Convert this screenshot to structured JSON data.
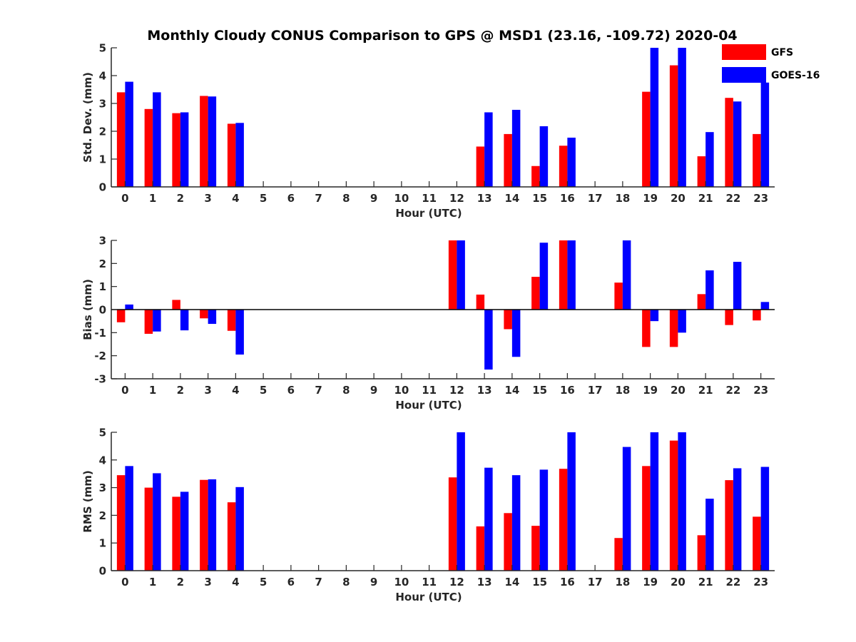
{
  "chart_data": {
    "title": "Monthly Cloudy CONUS Comparison to GPS @ MSD1 (23.16, -109.72) 2020-04",
    "legend": {
      "placement": "top-right",
      "entries": [
        {
          "name": "GFS",
          "color": "#ff0000"
        },
        {
          "name": "GOES-16",
          "color": "#0000ff"
        }
      ]
    },
    "panels": [
      {
        "type": "bar",
        "ylabel": "Std. Dev. (mm)",
        "xlabel": "Hour (UTC)",
        "ylim": [
          0,
          5
        ],
        "yticks": [
          "0",
          "1",
          "2",
          "3",
          "4",
          "5"
        ],
        "categories": [
          "0",
          "1",
          "2",
          "3",
          "4",
          "5",
          "6",
          "7",
          "8",
          "9",
          "10",
          "11",
          "12",
          "13",
          "14",
          "15",
          "16",
          "17",
          "18",
          "19",
          "20",
          "21",
          "22",
          "23"
        ],
        "series": [
          {
            "name": "GFS",
            "color": "#ff0000",
            "values": [
              3.4,
              2.8,
              2.65,
              3.27,
              2.27,
              null,
              null,
              null,
              null,
              null,
              null,
              null,
              null,
              1.45,
              1.9,
              0.75,
              1.48,
              null,
              null,
              3.42,
              4.37,
              1.1,
              3.2,
              1.9
            ]
          },
          {
            "name": "GOES-16",
            "color": "#0000ff",
            "values": [
              3.78,
              3.4,
              2.68,
              3.25,
              2.3,
              null,
              null,
              null,
              null,
              null,
              null,
              null,
              null,
              2.68,
              2.77,
              2.18,
              1.77,
              null,
              null,
              5,
              5,
              1.97,
              3.07,
              3.75
            ]
          }
        ]
      },
      {
        "type": "bar",
        "ylabel": "Bias (mm)",
        "xlabel": "Hour (UTC)",
        "ylim": [
          -3,
          3
        ],
        "yticks": [
          "-3",
          "-2",
          "-1",
          "0",
          "1",
          "2",
          "3"
        ],
        "categories": [
          "0",
          "1",
          "2",
          "3",
          "4",
          "5",
          "6",
          "7",
          "8",
          "9",
          "10",
          "11",
          "12",
          "13",
          "14",
          "15",
          "16",
          "17",
          "18",
          "19",
          "20",
          "21",
          "22",
          "23"
        ],
        "series": [
          {
            "name": "GFS",
            "color": "#ff0000",
            "values": [
              -0.55,
              -1.05,
              0.42,
              -0.38,
              -0.92,
              null,
              null,
              null,
              null,
              null,
              null,
              null,
              3,
              0.65,
              -0.85,
              1.42,
              3,
              null,
              1.17,
              -1.62,
              -1.62,
              0.67,
              -0.67,
              -0.47
            ]
          },
          {
            "name": "GOES-16",
            "color": "#0000ff",
            "values": [
              0.22,
              -0.95,
              -0.9,
              -0.62,
              -1.95,
              null,
              null,
              null,
              null,
              null,
              null,
              null,
              3,
              -2.6,
              -2.05,
              2.9,
              3,
              null,
              3,
              -0.5,
              -1.0,
              1.7,
              2.07,
              0.33
            ]
          }
        ]
      },
      {
        "type": "bar",
        "ylabel": "RMS (mm)",
        "xlabel": "Hour (UTC)",
        "ylim": [
          0,
          5
        ],
        "yticks": [
          "0",
          "1",
          "2",
          "3",
          "4",
          "5"
        ],
        "categories": [
          "0",
          "1",
          "2",
          "3",
          "4",
          "5",
          "6",
          "7",
          "8",
          "9",
          "10",
          "11",
          "12",
          "13",
          "14",
          "15",
          "16",
          "17",
          "18",
          "19",
          "20",
          "21",
          "22",
          "23"
        ],
        "series": [
          {
            "name": "GFS",
            "color": "#ff0000",
            "values": [
              3.45,
              3.0,
              2.67,
              3.28,
              2.47,
              null,
              null,
              null,
              null,
              null,
              null,
              null,
              3.37,
              1.6,
              2.08,
              1.62,
              3.68,
              null,
              1.18,
              3.78,
              4.7,
              1.28,
              3.27,
              1.95
            ]
          },
          {
            "name": "GOES-16",
            "color": "#0000ff",
            "values": [
              3.78,
              3.52,
              2.85,
              3.3,
              3.02,
              null,
              null,
              null,
              null,
              null,
              null,
              null,
              5,
              3.72,
              3.45,
              3.65,
              5,
              null,
              4.47,
              5,
              5,
              2.6,
              3.7,
              3.75
            ]
          }
        ]
      }
    ]
  }
}
